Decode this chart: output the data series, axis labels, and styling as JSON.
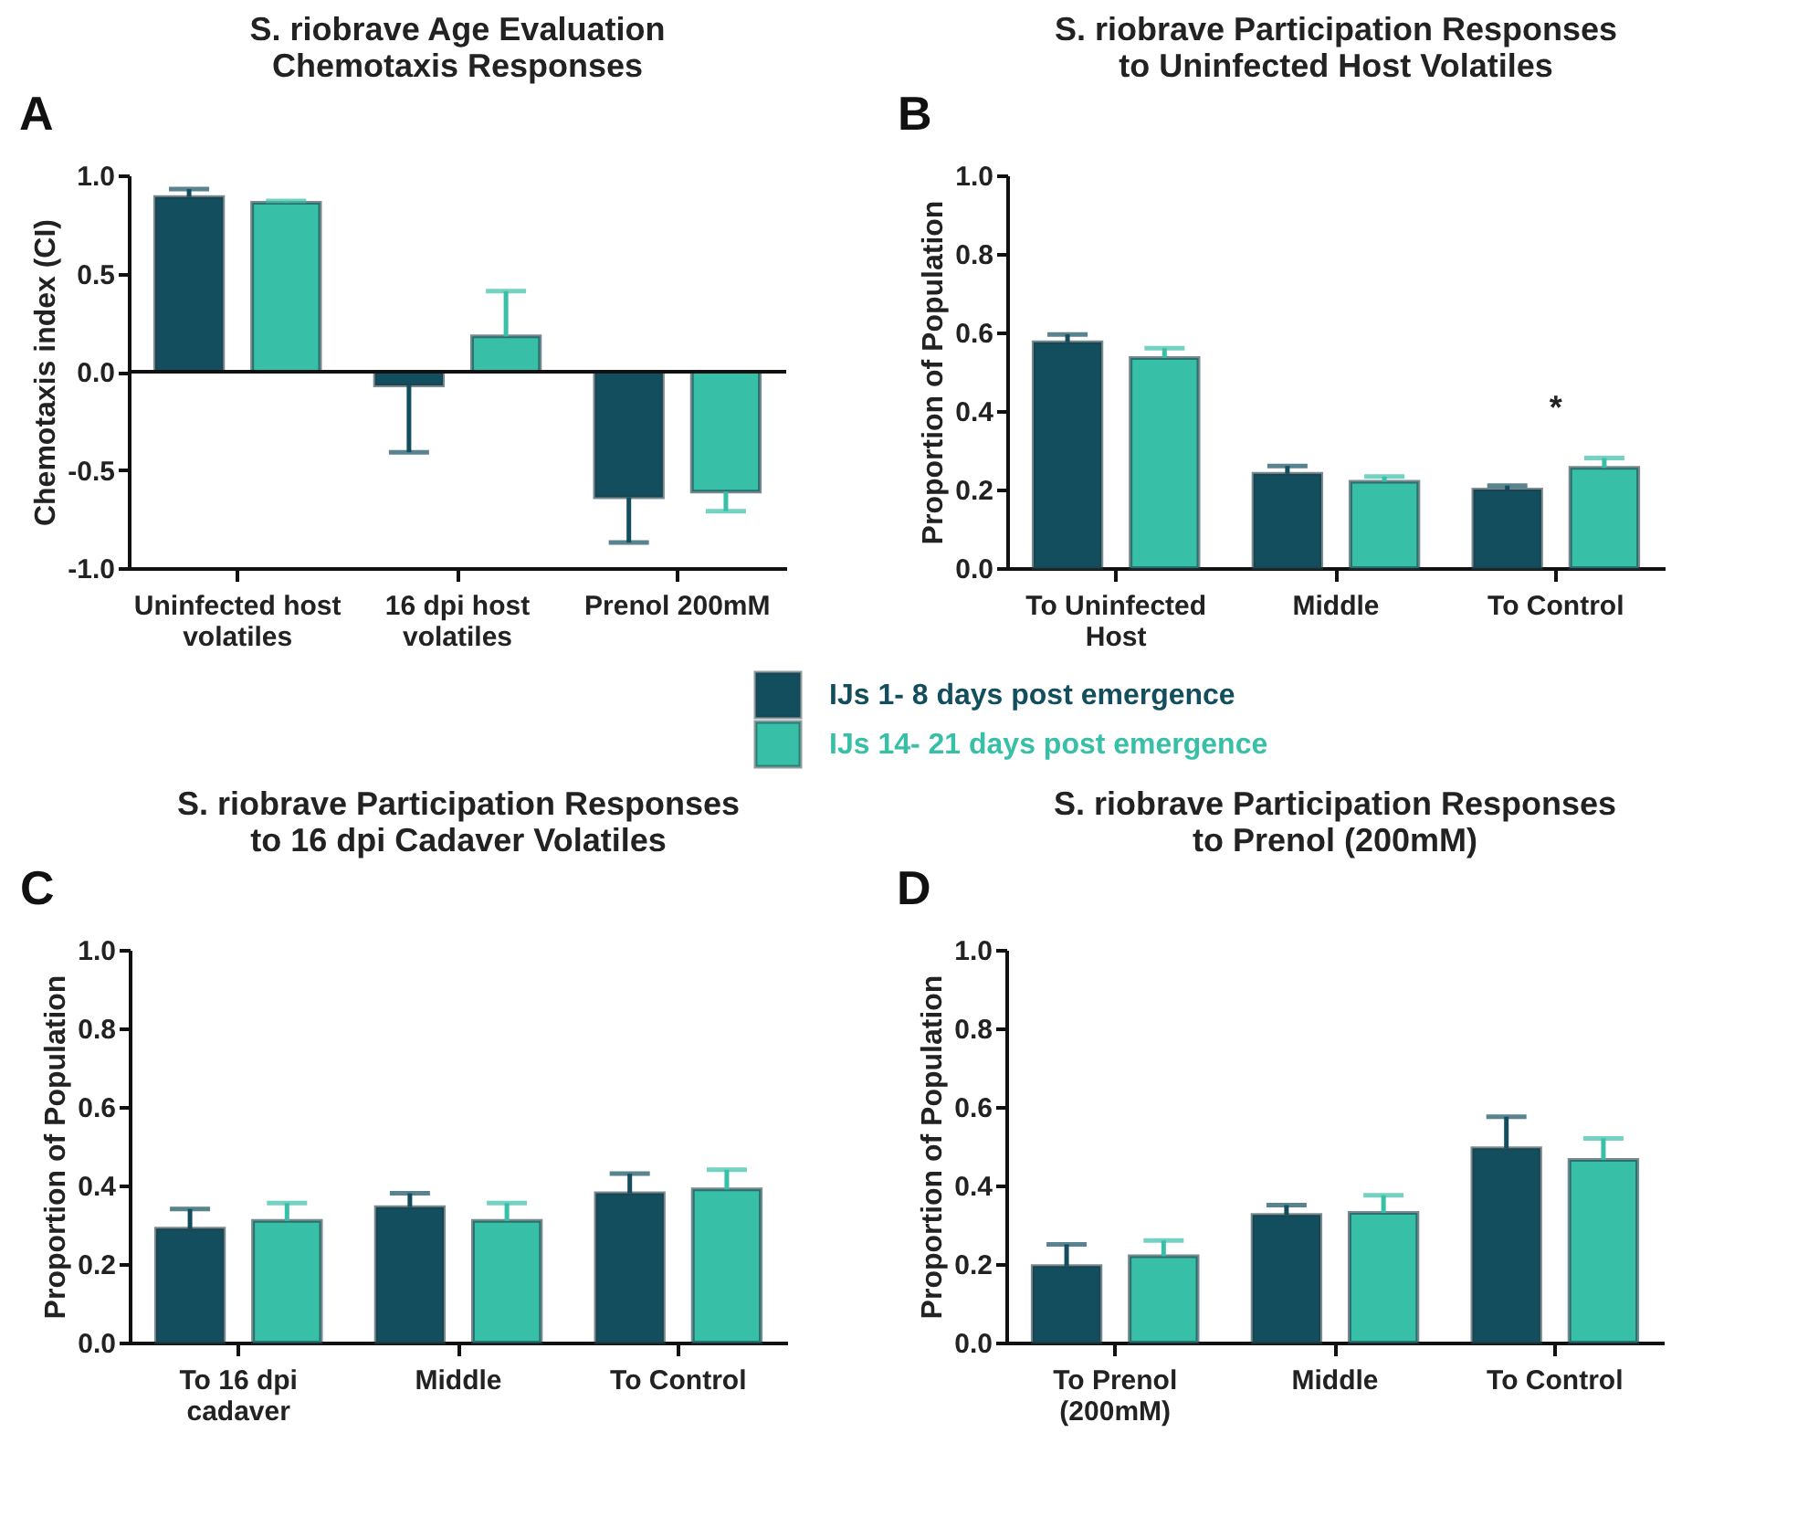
{
  "chart_data": [
    {
      "type": "bar",
      "title": "S. riobrave Age Evaluation\nChemotaxis Responses",
      "ylabel": "Chemotaxis index (CI)",
      "categories": [
        "Uninfected host\nvolatiles",
        "16 dpi host\nvolatiles",
        "Prenol 200mM"
      ],
      "series": [
        {
          "name": "IJs 1- 8 days post emergence",
          "color": "#134e5e",
          "values": [
            0.89,
            -0.07,
            -0.64
          ],
          "errors": [
            [
              0.89,
              0.93
            ],
            [
              -0.41,
              -0.07
            ],
            [
              -0.87,
              -0.64
            ]
          ]
        },
        {
          "name": "IJs 14- 21 days post emergence",
          "color": "#38bfa7",
          "values": [
            0.86,
            0.18,
            -0.61
          ],
          "errors": [
            [
              0.86,
              0.87
            ],
            [
              0.18,
              0.41
            ],
            [
              -0.71,
              -0.61
            ]
          ]
        }
      ],
      "ylim": [
        -1,
        1
      ],
      "yticks": [
        {
          "value": -1,
          "label": "-1.0"
        },
        {
          "value": -0.5,
          "label": "-0.5"
        },
        {
          "value": 0,
          "label": "0.0"
        },
        {
          "value": 0.5,
          "label": "0.5"
        },
        {
          "value": 1,
          "label": "1.0"
        }
      ],
      "ref_lines": [
        {
          "axis": "y",
          "value": 0
        }
      ],
      "annotations": [
        "A"
      ],
      "grid": false,
      "legend": "bottom"
    },
    {
      "type": "bar",
      "title": "S. riobrave Participation Responses\nto Uninfected Host Volatiles",
      "ylabel": "Proportion of Population",
      "categories": [
        "To Uninfected\nHost",
        "Middle",
        "To Control"
      ],
      "series": [
        {
          "color": "#134e5e",
          "values": [
            0.575,
            0.24,
            0.2
          ],
          "errors": [
            [
              0.575,
              0.595
            ],
            [
              0.24,
              0.26
            ],
            [
              0.2,
              0.21
            ]
          ]
        },
        {
          "color": "#38bfa7",
          "values": [
            0.535,
            0.22,
            0.255
          ],
          "errors": [
            [
              0.535,
              0.56
            ],
            [
              0.22,
              0.233
            ],
            [
              0.255,
              0.28
            ]
          ]
        }
      ],
      "ylim": [
        0,
        1
      ],
      "yticks": [
        {
          "value": 0,
          "label": "0.0"
        },
        {
          "value": 0.2,
          "label": "0.2"
        },
        {
          "value": 0.4,
          "label": "0.4"
        },
        {
          "value": 0.6,
          "label": "0.6"
        },
        {
          "value": 0.8,
          "label": "0.8"
        },
        {
          "value": 1,
          "label": "1.0"
        }
      ],
      "annotations": [
        "B",
        "*"
      ],
      "grid": false
    },
    {
      "type": "bar",
      "title": "S. riobrave Participation Responses\nto 16 dpi Cadaver Volatiles",
      "ylabel": "Proportion of Population",
      "categories": [
        "To 16 dpi\ncadaver",
        "Middle",
        "To Control"
      ],
      "series": [
        {
          "color": "#134e5e",
          "values": [
            0.29,
            0.345,
            0.38
          ],
          "errors": [
            [
              0.29,
              0.34
            ],
            [
              0.345,
              0.38
            ],
            [
              0.38,
              0.43
            ]
          ]
        },
        {
          "color": "#38bfa7",
          "values": [
            0.31,
            0.31,
            0.39
          ],
          "errors": [
            [
              0.31,
              0.355
            ],
            [
              0.31,
              0.355
            ],
            [
              0.39,
              0.44
            ]
          ]
        }
      ],
      "ylim": [
        0,
        1
      ],
      "yticks": [
        {
          "value": 0,
          "label": "0.0"
        },
        {
          "value": 0.2,
          "label": "0.2"
        },
        {
          "value": 0.4,
          "label": "0.4"
        },
        {
          "value": 0.6,
          "label": "0.6"
        },
        {
          "value": 0.8,
          "label": "0.8"
        },
        {
          "value": 1,
          "label": "1.0"
        }
      ],
      "annotations": [
        "C"
      ],
      "grid": false
    },
    {
      "type": "bar",
      "title": "S. riobrave Participation Responses\nto Prenol (200mM)",
      "ylabel": "Proportion of Population",
      "categories": [
        "To Prenol\n(200mM)",
        "Middle",
        "To Control"
      ],
      "series": [
        {
          "color": "#134e5e",
          "values": [
            0.195,
            0.325,
            0.495
          ],
          "errors": [
            [
              0.195,
              0.25
            ],
            [
              0.325,
              0.35
            ],
            [
              0.495,
              0.575
            ]
          ]
        },
        {
          "color": "#38bfa7",
          "values": [
            0.22,
            0.33,
            0.465
          ],
          "errors": [
            [
              0.22,
              0.26
            ],
            [
              0.33,
              0.375
            ],
            [
              0.465,
              0.52
            ]
          ]
        }
      ],
      "ylim": [
        0,
        1
      ],
      "yticks": [
        {
          "value": 0,
          "label": "0.0"
        },
        {
          "value": 0.2,
          "label": "0.2"
        },
        {
          "value": 0.4,
          "label": "0.4"
        },
        {
          "value": 0.6,
          "label": "0.6"
        },
        {
          "value": 0.8,
          "label": "0.8"
        },
        {
          "value": 1,
          "label": "1.0"
        }
      ],
      "annotations": [
        "D"
      ],
      "grid": false
    }
  ]
}
